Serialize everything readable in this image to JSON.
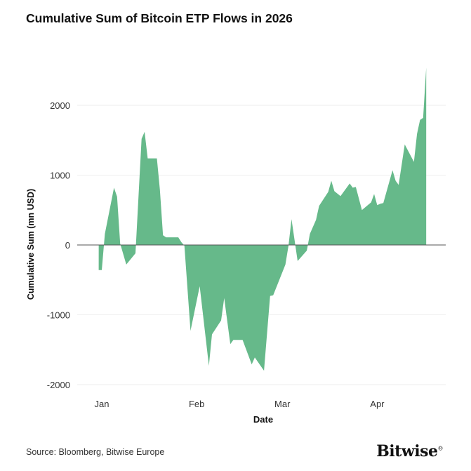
{
  "chart_data": {
    "type": "area",
    "title": "Cumulative Sum of Bitcoin ETP Flows in 2026",
    "xlabel": "Date",
    "ylabel": "Cumulative Sum (mn USD)",
    "ylim": [
      -2150,
      2600
    ],
    "yticks": [
      -2000,
      -1000,
      0,
      1000,
      2000
    ],
    "ytick_labels": [
      "-2000",
      "-1000",
      "0",
      "1000",
      "2000"
    ],
    "xticks": [
      {
        "date": "2026-01-01",
        "label": "Jan"
      },
      {
        "date": "2026-02-01",
        "label": "Feb"
      },
      {
        "date": "2026-03-01",
        "label": "Mar"
      },
      {
        "date": "2026-04-01",
        "label": "Apr"
      }
    ],
    "grid": true,
    "color": "#66b98a",
    "series": [
      {
        "x": [
          "2025-12-31",
          "2026-01-01",
          "2026-01-02",
          "2026-01-05",
          "2026-01-06",
          "2026-01-07",
          "2026-01-09",
          "2026-01-12",
          "2026-01-14",
          "2026-01-15",
          "2026-01-16",
          "2026-01-19",
          "2026-01-20",
          "2026-01-21",
          "2026-01-22",
          "2026-01-26",
          "2026-01-27",
          "2026-01-28",
          "2026-01-30",
          "2026-02-02",
          "2026-02-05",
          "2026-02-06",
          "2026-02-09",
          "2026-02-10",
          "2026-02-12",
          "2026-02-13",
          "2026-02-16",
          "2026-02-19",
          "2026-02-20",
          "2026-02-23",
          "2026-02-25",
          "2026-02-26",
          "2026-03-02",
          "2026-03-03",
          "2026-03-04",
          "2026-03-06",
          "2026-03-09",
          "2026-03-10",
          "2026-03-12",
          "2026-03-13",
          "2026-03-16",
          "2026-03-17",
          "2026-03-18",
          "2026-03-20",
          "2026-03-23",
          "2026-03-24",
          "2026-03-25",
          "2026-03-27",
          "2026-03-30",
          "2026-03-31",
          "2026-04-01",
          "2026-04-02",
          "2026-04-03",
          "2026-04-06",
          "2026-04-07",
          "2026-04-08",
          "2026-04-10",
          "2026-04-13",
          "2026-04-14",
          "2026-04-15",
          "2026-04-16",
          "2026-04-17"
        ],
        "values": [
          -360,
          -360,
          160,
          820,
          690,
          20,
          -280,
          -120,
          1520,
          1620,
          1240,
          1240,
          790,
          140,
          110,
          110,
          40,
          -10,
          -1230,
          -590,
          -1730,
          -1280,
          -1080,
          -760,
          -1420,
          -1360,
          -1360,
          -1710,
          -1610,
          -1800,
          -730,
          -720,
          -280,
          -10,
          370,
          -230,
          -80,
          160,
          360,
          560,
          760,
          920,
          770,
          700,
          880,
          820,
          830,
          500,
          610,
          730,
          570,
          590,
          600,
          1070,
          920,
          860,
          1440,
          1190,
          1590,
          1790,
          1820,
          2540
        ]
      }
    ]
  },
  "source": "Source: Bloomberg, Bitwise Europe",
  "logo": "Bitwise"
}
